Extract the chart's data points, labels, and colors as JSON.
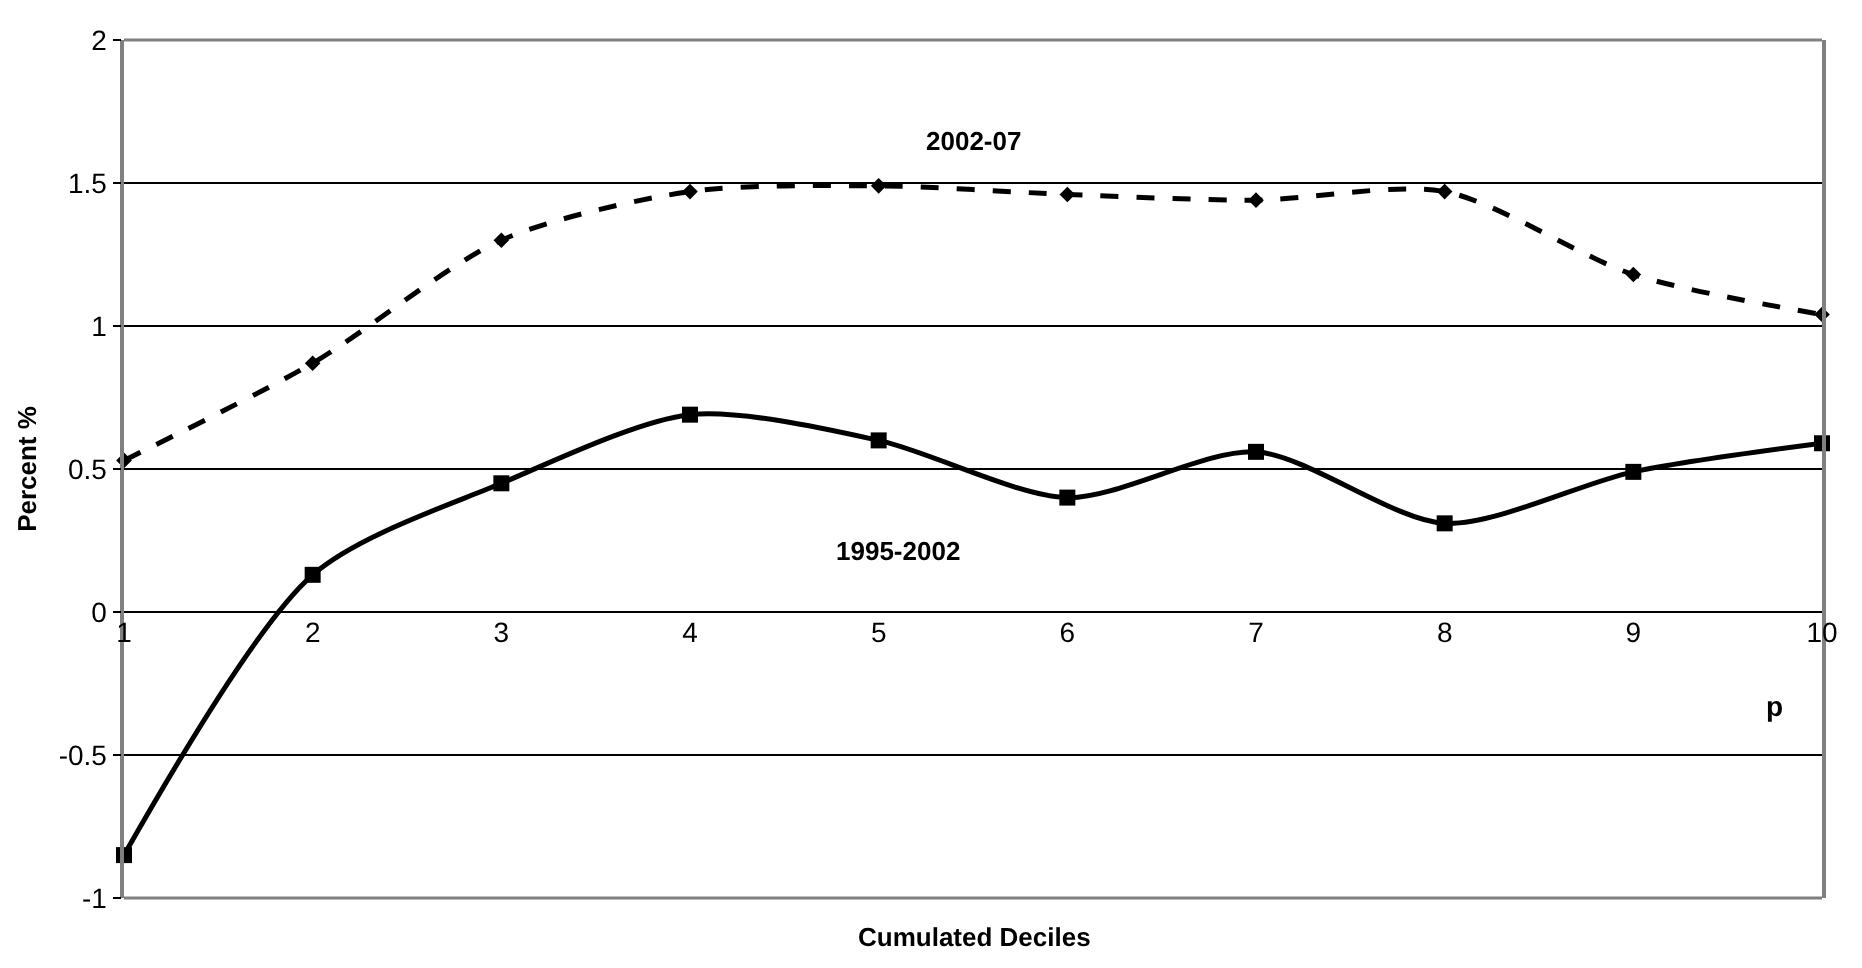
{
  "chart_data": {
    "type": "line",
    "x": [
      1,
      2,
      3,
      4,
      5,
      6,
      7,
      8,
      9,
      10
    ],
    "xlabel": "Cumulated Deciles",
    "ylabel": "Percent %",
    "series": [
      {
        "name": "2002-07",
        "color": "#000000",
        "line_style": "dashed",
        "marker": "diamond",
        "values": [
          0.53,
          0.87,
          1.3,
          1.47,
          1.49,
          1.46,
          1.44,
          1.47,
          1.18,
          1.04
        ]
      },
      {
        "name": "1995-2002",
        "color": "#000000",
        "line_style": "solid",
        "marker": "square",
        "values": [
          -0.85,
          0.13,
          0.45,
          0.69,
          0.6,
          0.4,
          0.56,
          0.31,
          0.49,
          0.59
        ]
      }
    ],
    "annotations": [
      "p"
    ],
    "xlim": [
      1,
      10
    ],
    "xticks": [
      1,
      2,
      3,
      4,
      5,
      6,
      7,
      8,
      9,
      10
    ],
    "ylim": [
      -1,
      2
    ],
    "yticks": [
      -1,
      -0.5,
      0,
      0.5,
      1,
      1.5,
      2
    ],
    "grid": "y",
    "legend": false
  }
}
